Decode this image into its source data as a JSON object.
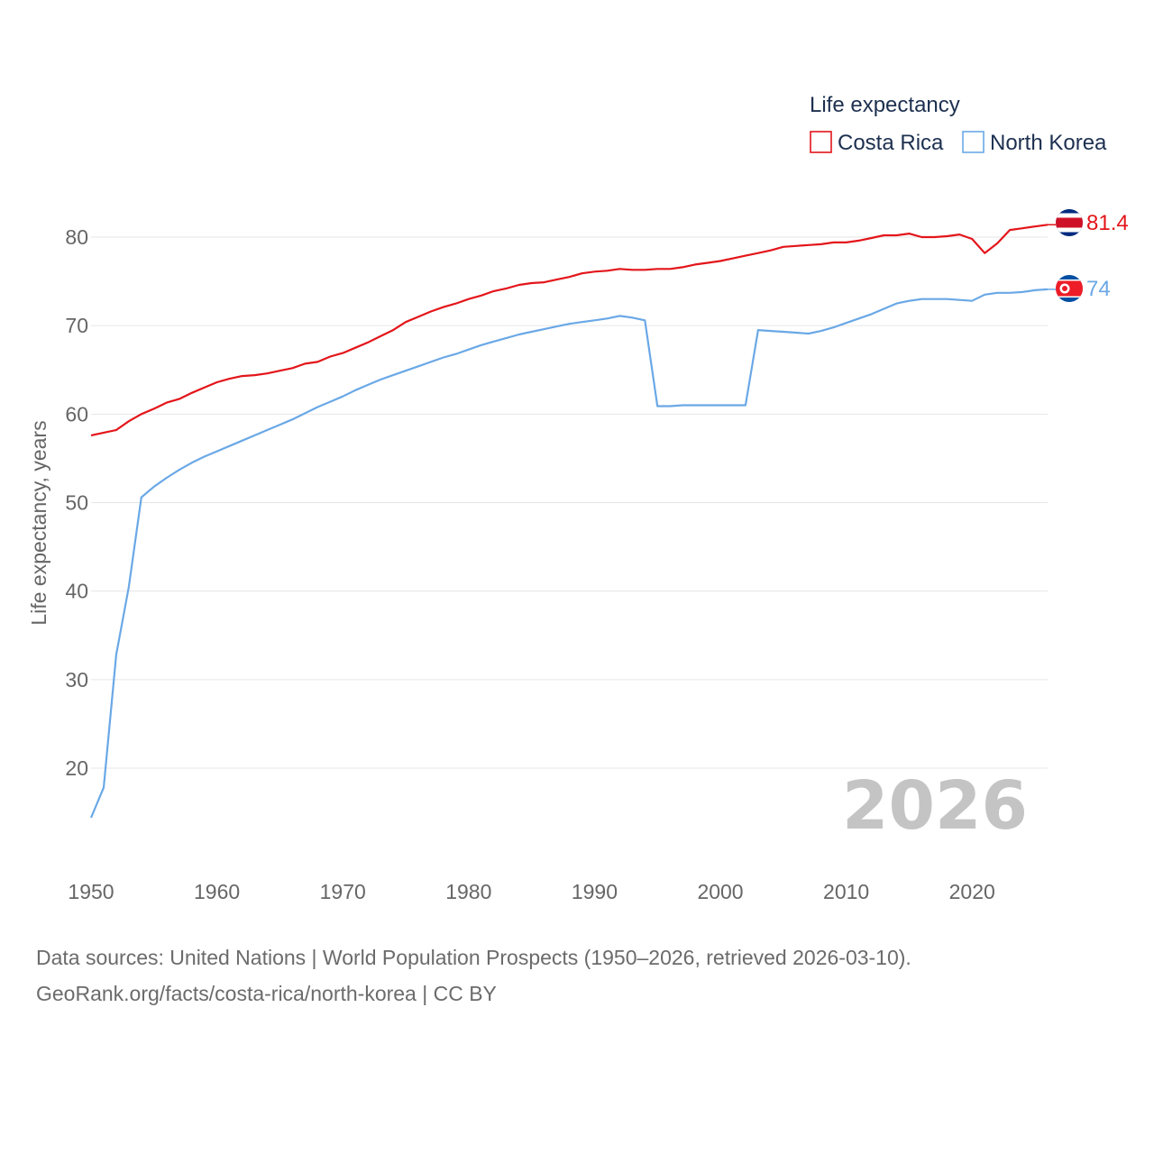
{
  "chart_data": {
    "type": "line",
    "title": "",
    "ylabel": "Life expectancy, years",
    "xlabel": "",
    "xlim": [
      1950,
      2026
    ],
    "ylim": [
      13,
      83
    ],
    "yticks": [
      20,
      30,
      40,
      50,
      60,
      70,
      80
    ],
    "xticks": [
      1950,
      1960,
      1970,
      1980,
      1990,
      2000,
      2010,
      2020
    ],
    "grid": true,
    "legend": {
      "title": "Life expectancy",
      "position": "top-right"
    },
    "year_label": "2026",
    "series": [
      {
        "name": "Costa Rica",
        "color": "#e3151a",
        "flag": "costa-rica-flag-icon",
        "end_label": "81.4",
        "x": [
          1950,
          1951,
          1952,
          1953,
          1954,
          1955,
          1956,
          1957,
          1958,
          1959,
          1960,
          1961,
          1962,
          1963,
          1964,
          1965,
          1966,
          1967,
          1968,
          1969,
          1970,
          1971,
          1972,
          1973,
          1974,
          1975,
          1976,
          1977,
          1978,
          1979,
          1980,
          1981,
          1982,
          1983,
          1984,
          1985,
          1986,
          1987,
          1988,
          1989,
          1990,
          1991,
          1992,
          1993,
          1994,
          1995,
          1996,
          1997,
          1998,
          1999,
          2000,
          2001,
          2002,
          2003,
          2004,
          2005,
          2006,
          2007,
          2008,
          2009,
          2010,
          2011,
          2012,
          2013,
          2014,
          2015,
          2016,
          2017,
          2018,
          2019,
          2020,
          2021,
          2022,
          2023,
          2024,
          2025,
          2026
        ],
        "values": [
          57.6,
          57.9,
          58.2,
          59.2,
          60.0,
          60.6,
          61.3,
          61.7,
          62.4,
          63.0,
          63.6,
          64.0,
          64.3,
          64.4,
          64.6,
          64.9,
          65.2,
          65.7,
          65.9,
          66.5,
          66.9,
          67.5,
          68.1,
          68.8,
          69.5,
          70.4,
          71.0,
          71.6,
          72.1,
          72.5,
          73.0,
          73.4,
          73.9,
          74.2,
          74.6,
          74.8,
          74.9,
          75.2,
          75.5,
          75.9,
          76.1,
          76.2,
          76.4,
          76.3,
          76.3,
          76.4,
          76.4,
          76.6,
          76.9,
          77.1,
          77.3,
          77.6,
          77.9,
          78.2,
          78.5,
          78.9,
          79.0,
          79.1,
          79.2,
          79.4,
          79.4,
          79.6,
          79.9,
          80.2,
          80.2,
          80.4,
          80.0,
          80.0,
          80.1,
          80.3,
          79.8,
          78.2,
          79.3,
          80.8,
          81.0,
          81.2,
          81.4
        ]
      },
      {
        "name": "North Korea",
        "color": "#6aa8e6",
        "flag": "north-korea-flag-icon",
        "end_label": "74",
        "x": [
          1950,
          1951,
          1952,
          1953,
          1954,
          1955,
          1956,
          1957,
          1958,
          1959,
          1960,
          1961,
          1962,
          1963,
          1964,
          1965,
          1966,
          1967,
          1968,
          1969,
          1970,
          1971,
          1972,
          1973,
          1974,
          1975,
          1976,
          1977,
          1978,
          1979,
          1980,
          1981,
          1982,
          1983,
          1984,
          1985,
          1986,
          1987,
          1988,
          1989,
          1990,
          1991,
          1992,
          1993,
          1994,
          1995,
          1996,
          1997,
          1998,
          1999,
          2000,
          2001,
          2002,
          2003,
          2004,
          2005,
          2006,
          2007,
          2008,
          2009,
          2010,
          2011,
          2012,
          2013,
          2014,
          2015,
          2016,
          2017,
          2018,
          2019,
          2020,
          2021,
          2022,
          2023,
          2024,
          2025,
          2026
        ],
        "values": [
          14.4,
          17.8,
          32.8,
          40.5,
          50.6,
          51.8,
          52.8,
          53.7,
          54.5,
          55.2,
          55.8,
          56.4,
          57.0,
          57.6,
          58.2,
          58.8,
          59.4,
          60.1,
          60.8,
          61.4,
          62.0,
          62.7,
          63.3,
          63.9,
          64.4,
          64.9,
          65.4,
          65.9,
          66.4,
          66.8,
          67.3,
          67.8,
          68.2,
          68.6,
          69.0,
          69.3,
          69.6,
          69.9,
          70.2,
          70.4,
          70.6,
          70.8,
          71.1,
          70.9,
          70.6,
          60.9,
          60.9,
          61.0,
          61.0,
          61.0,
          61.0,
          61.0,
          61.0,
          69.5,
          69.4,
          69.3,
          69.2,
          69.1,
          69.4,
          69.8,
          70.3,
          70.8,
          71.3,
          71.9,
          72.5,
          72.8,
          73.0,
          73.0,
          73.0,
          72.9,
          72.8,
          73.5,
          73.7,
          73.7,
          73.8,
          74.0,
          74.1
        ]
      }
    ]
  },
  "footer": {
    "sources_line": "Data sources: United Nations | World Population Prospects (1950–2026, retrieved 2026-03-10).",
    "credit_line": "GeoRank.org/facts/costa-rica/north-korea | CC BY"
  }
}
